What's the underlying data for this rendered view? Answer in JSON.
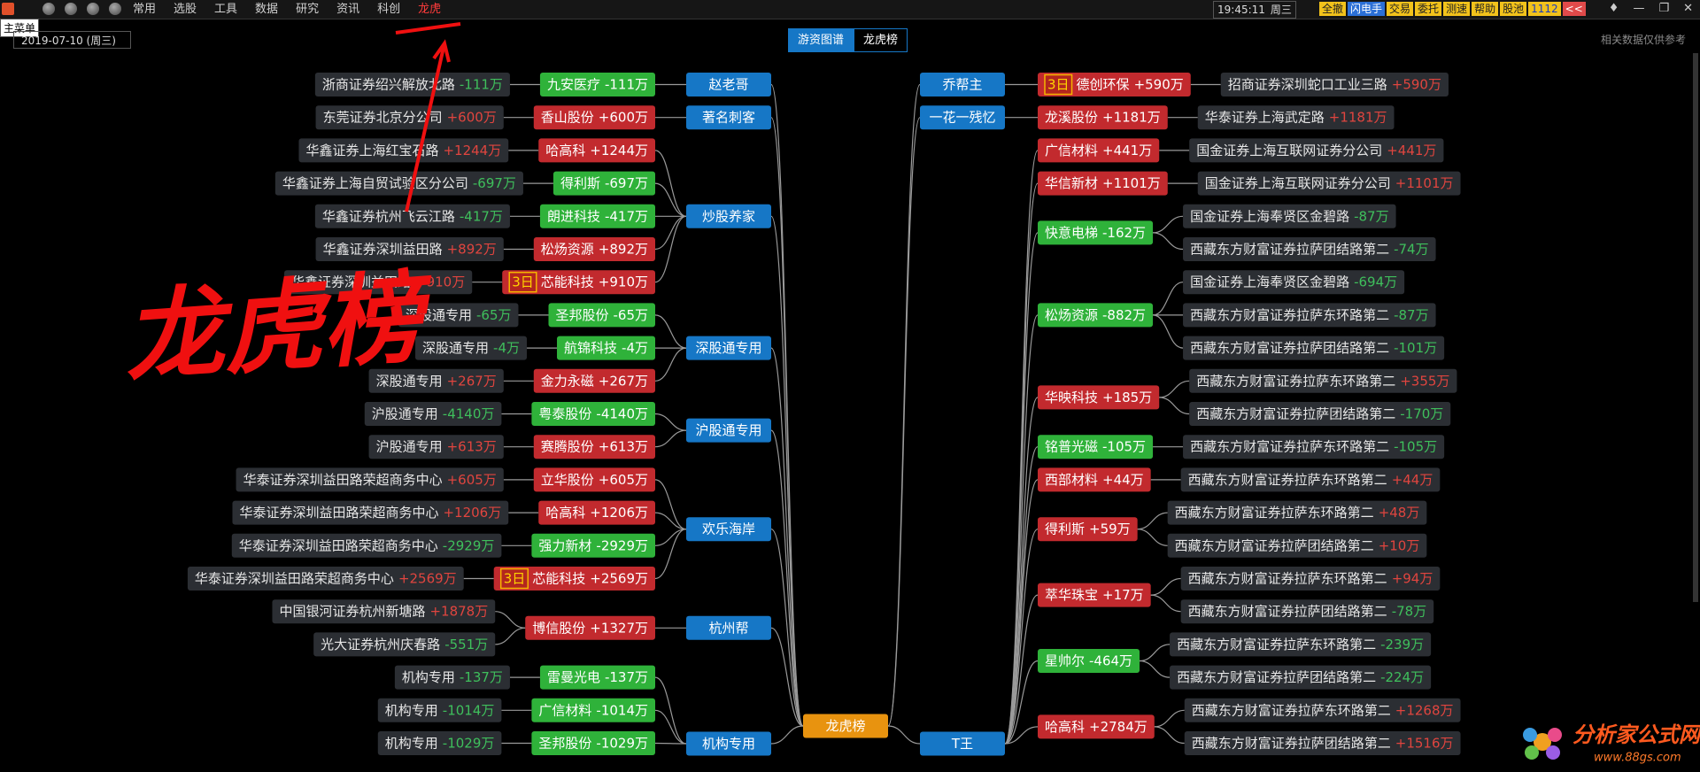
{
  "menu": {
    "tooltip": "主菜单",
    "items": [
      "常用",
      "选股",
      "工具",
      "数据",
      "研究",
      "资讯",
      "科创",
      "龙虎"
    ]
  },
  "clock": "19:45:11",
  "weekday": "周三",
  "toolbar": [
    "全撤",
    "闪电手",
    "交易",
    "委托",
    "测速",
    "帮助",
    "股池",
    "1112",
    "<<"
  ],
  "date": "2019-07-10 (周三)",
  "tabs": [
    "游资图谱",
    "龙虎榜"
  ],
  "disclaimer": "相关数据仅供参考",
  "annotation": "龙虎榜",
  "watermark": {
    "title": "分析家公式网",
    "url": "www.88gs.com"
  },
  "map": {
    "root": "龙虎榜",
    "left": [
      {
        "name": "赵老哥",
        "stocks": [
          {
            "name": "九安医疗",
            "change": "-111万",
            "brokers": [
              {
                "name": "浙商证券绍兴解放北路",
                "change": "-111万"
              }
            ]
          }
        ]
      },
      {
        "name": "著名刺客",
        "stocks": [
          {
            "name": "香山股份",
            "change": "+600万",
            "brokers": [
              {
                "name": "东莞证券北京分公司",
                "change": "+600万"
              }
            ]
          }
        ]
      },
      {
        "name": "炒股养家",
        "stocks": [
          {
            "name": "哈高科",
            "change": "+1244万",
            "brokers": [
              {
                "name": "华鑫证券上海红宝石路",
                "change": "+1244万"
              }
            ]
          },
          {
            "name": "得利斯",
            "change": "-697万",
            "brokers": [
              {
                "name": "华鑫证券上海自贸试验区分公司",
                "change": "-697万"
              }
            ]
          },
          {
            "name": "朗进科技",
            "change": "-417万",
            "brokers": [
              {
                "name": "华鑫证券杭州飞云江路",
                "change": "-417万"
              }
            ]
          },
          {
            "name": "松炀资源",
            "change": "+892万",
            "brokers": [
              {
                "name": "华鑫证券深圳益田路",
                "change": "+892万"
              }
            ]
          },
          {
            "badge": "3日",
            "name": "芯能科技",
            "change": "+910万",
            "brokers": [
              {
                "name": "华鑫证券深圳益田路",
                "change": "+910万"
              }
            ]
          }
        ]
      },
      {
        "name": "深股通专用",
        "stocks": [
          {
            "name": "圣邦股份",
            "change": "-65万",
            "brokers": [
              {
                "name": "深股通专用",
                "change": "-65万"
              }
            ]
          },
          {
            "name": "航锦科技",
            "change": "-4万",
            "brokers": [
              {
                "name": "深股通专用",
                "change": "-4万"
              }
            ]
          },
          {
            "name": "金力永磁",
            "change": "+267万",
            "brokers": [
              {
                "name": "深股通专用",
                "change": "+267万"
              }
            ]
          }
        ]
      },
      {
        "name": "沪股通专用",
        "stocks": [
          {
            "name": "粤泰股份",
            "change": "-4140万",
            "brokers": [
              {
                "name": "沪股通专用",
                "change": "-4140万"
              }
            ]
          },
          {
            "name": "赛腾股份",
            "change": "+613万",
            "brokers": [
              {
                "name": "沪股通专用",
                "change": "+613万"
              }
            ]
          }
        ]
      },
      {
        "name": "欢乐海岸",
        "stocks": [
          {
            "name": "立华股份",
            "change": "+605万",
            "brokers": [
              {
                "name": "华泰证券深圳益田路荣超商务中心",
                "change": "+605万"
              }
            ]
          },
          {
            "name": "哈高科",
            "change": "+1206万",
            "brokers": [
              {
                "name": "华泰证券深圳益田路荣超商务中心",
                "change": "+1206万"
              }
            ]
          },
          {
            "name": "强力新材",
            "change": "-2929万",
            "brokers": [
              {
                "name": "华泰证券深圳益田路荣超商务中心",
                "change": "-2929万"
              }
            ]
          },
          {
            "badge": "3日",
            "name": "芯能科技",
            "change": "+2569万",
            "brokers": [
              {
                "name": "华泰证券深圳益田路荣超商务中心",
                "change": "+2569万"
              }
            ]
          }
        ]
      },
      {
        "name": "杭州帮",
        "stocks": [
          {
            "name": "博信股份",
            "change": "+1327万",
            "brokers": [
              {
                "name": "中国银河证券杭州新塘路",
                "change": "+1878万"
              },
              {
                "name": "光大证券杭州庆春路",
                "change": "-551万"
              }
            ]
          }
        ]
      },
      {
        "name": "机构专用",
        "stocks": [
          {
            "name": "雷曼光电",
            "change": "-137万",
            "brokers": [
              {
                "name": "机构专用",
                "change": "-137万"
              }
            ]
          },
          {
            "name": "广信材料",
            "change": "-1014万",
            "brokers": [
              {
                "name": "机构专用",
                "change": "-1014万"
              }
            ]
          },
          {
            "name": "圣邦股份",
            "change": "-1029万",
            "brokers": [
              {
                "name": "机构专用",
                "change": "-1029万"
              }
            ]
          }
        ]
      }
    ],
    "right": [
      {
        "name": "乔帮主",
        "stocks": [
          {
            "badge": "3日",
            "name": "德创环保",
            "change": "+590万",
            "brokers": [
              {
                "name": "招商证券深圳蛇口工业三路",
                "change": "+590万"
              }
            ]
          }
        ]
      },
      {
        "name": "一花一残忆",
        "stocks": [
          {
            "name": "龙溪股份",
            "change": "+1181万",
            "brokers": [
              {
                "name": "华泰证券上海武定路",
                "change": "+1181万"
              }
            ]
          }
        ]
      },
      {
        "name": "T王",
        "stocks": [
          {
            "name": "广信材料",
            "change": "+441万",
            "brokers": [
              {
                "name": "国金证券上海互联网证券分公司",
                "change": "+441万"
              }
            ]
          },
          {
            "name": "华信新材",
            "change": "+1101万",
            "brokers": [
              {
                "name": "国金证券上海互联网证券分公司",
                "change": "+1101万"
              }
            ]
          },
          {
            "name": "快意电梯",
            "change": "-162万",
            "brokers": [
              {
                "name": "国金证券上海奉贤区金碧路",
                "change": "-87万"
              },
              {
                "name": "西藏东方财富证券拉萨团结路第二",
                "change": "-74万"
              }
            ]
          },
          {
            "name": "松炀资源",
            "change": "-882万",
            "brokers": [
              {
                "name": "国金证券上海奉贤区金碧路",
                "change": "-694万"
              },
              {
                "name": "西藏东方财富证券拉萨东环路第二",
                "change": "-87万"
              },
              {
                "name": "西藏东方财富证券拉萨团结路第二",
                "change": "-101万"
              }
            ]
          },
          {
            "name": "华映科技",
            "change": "+185万",
            "brokers": [
              {
                "name": "西藏东方财富证券拉萨东环路第二",
                "change": "+355万"
              },
              {
                "name": "西藏东方财富证券拉萨团结路第二",
                "change": "-170万"
              }
            ]
          },
          {
            "name": "铭普光磁",
            "change": "-105万",
            "brokers": [
              {
                "name": "西藏东方财富证券拉萨东环路第二",
                "change": "-105万"
              }
            ]
          },
          {
            "name": "西部材料",
            "change": "+44万",
            "brokers": [
              {
                "name": "西藏东方财富证券拉萨东环路第二",
                "change": "+44万"
              }
            ]
          },
          {
            "name": "得利斯",
            "change": "+59万",
            "brokers": [
              {
                "name": "西藏东方财富证券拉萨东环路第二",
                "change": "+48万"
              },
              {
                "name": "西藏东方财富证券拉萨团结路第二",
                "change": "+10万"
              }
            ]
          },
          {
            "name": "萃华珠宝",
            "change": "+17万",
            "brokers": [
              {
                "name": "西藏东方财富证券拉萨东环路第二",
                "change": "+94万"
              },
              {
                "name": "西藏东方财富证券拉萨团结路第二",
                "change": "-78万"
              }
            ]
          },
          {
            "name": "星帅尔",
            "change": "-464万",
            "brokers": [
              {
                "name": "西藏东方财富证券拉萨东环路第二",
                "change": "-239万"
              },
              {
                "name": "西藏东方财富证券拉萨团结路第二",
                "change": "-224万"
              }
            ]
          },
          {
            "name": "哈高科",
            "change": "+2784万",
            "brokers": [
              {
                "name": "西藏东方财富证券拉萨东环路第二",
                "change": "+1268万"
              },
              {
                "name": "西藏东方财富证券拉萨团结路第二",
                "change": "+1516万"
              }
            ]
          }
        ]
      }
    ]
  }
}
